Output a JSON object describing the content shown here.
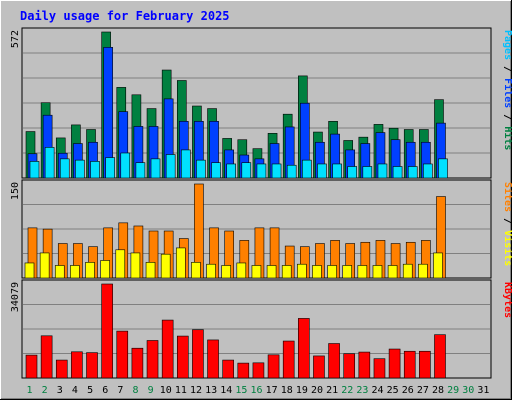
{
  "chart_data": {
    "type": "bar",
    "title": "Daily usage for February 2025",
    "days": [
      "1",
      "2",
      "3",
      "4",
      "5",
      "6",
      "7",
      "8",
      "9",
      "10",
      "11",
      "12",
      "13",
      "14",
      "15",
      "16",
      "17",
      "18",
      "19",
      "20",
      "21",
      "22",
      "23",
      "24",
      "25",
      "26",
      "27",
      "28",
      "29",
      "30",
      "31"
    ],
    "weekend_days": [
      "1",
      "2",
      "8",
      "9",
      "15",
      "16",
      "22",
      "23",
      "29",
      "30"
    ],
    "days_with_data": 28,
    "panels": [
      {
        "id": "top",
        "max_label": "572",
        "max": 572,
        "axis_label": [
          "Pages",
          "Files",
          "Hits"
        ],
        "series": [
          {
            "name": "Hits",
            "color": "#008040",
            "values": [
              182,
              295,
              157,
              208,
              190,
              572,
              355,
              326,
              272,
              423,
              382,
              282,
              272,
              155,
              150,
              115,
              175,
              250,
              400,
              180,
              222,
              147,
              160,
              210,
              195,
              190,
              190,
              307
            ]
          },
          {
            "name": "Files",
            "color": "#0040ff",
            "values": [
              95,
              246,
              97,
              135,
              140,
              512,
              260,
              202,
              202,
              310,
              222,
              222,
              222,
              110,
              90,
              75,
              135,
              200,
              293,
              140,
              172,
              110,
              135,
              178,
              150,
              140,
              140,
              215
            ]
          },
          {
            "name": "Pages",
            "color": "#00e0ff",
            "values": [
              65,
              120,
              75,
              70,
              65,
              80,
              98,
              60,
              75,
              92,
              110,
              70,
              60,
              55,
              60,
              55,
              55,
              50,
              70,
              55,
              55,
              45,
              45,
              55,
              45,
              45,
              55,
              75
            ]
          }
        ]
      },
      {
        "id": "middle",
        "max_label": "150",
        "max": 150,
        "axis_label": [
          "Sites",
          "Visits"
        ],
        "series": [
          {
            "name": "Visits",
            "color": "#ff8000",
            "values": [
              80,
              78,
              55,
              55,
              50,
              80,
              88,
              83,
              75,
              75,
              63,
              150,
              80,
              75,
              60,
              80,
              80,
              51,
              50,
              55,
              60,
              55,
              57,
              60,
              55,
              57,
              60,
              130
            ]
          },
          {
            "name": "Sites",
            "color": "#ffff00",
            "values": [
              24,
              40,
              20,
              20,
              25,
              28,
              45,
              40,
              25,
              38,
              48,
              25,
              22,
              20,
              24,
              20,
              20,
              20,
              22,
              20,
              20,
              20,
              20,
              20,
              20,
              22,
              22,
              40
            ]
          }
        ]
      },
      {
        "id": "bottom",
        "max_label": "34079",
        "max": 34079,
        "axis_label": [
          "KBytes"
        ],
        "series": [
          {
            "name": "KBytes",
            "color": "#ff0000",
            "values": [
              8300,
              15300,
              6500,
              9500,
              9200,
              34079,
              17000,
              10800,
              13600,
              21000,
              15200,
              17500,
              13800,
              6500,
              5400,
              5500,
              8400,
              13400,
              21600,
              8000,
              12500,
              8800,
              9400,
              7000,
              10500,
              9700,
              9700,
              15700
            ]
          }
        ]
      }
    ]
  }
}
